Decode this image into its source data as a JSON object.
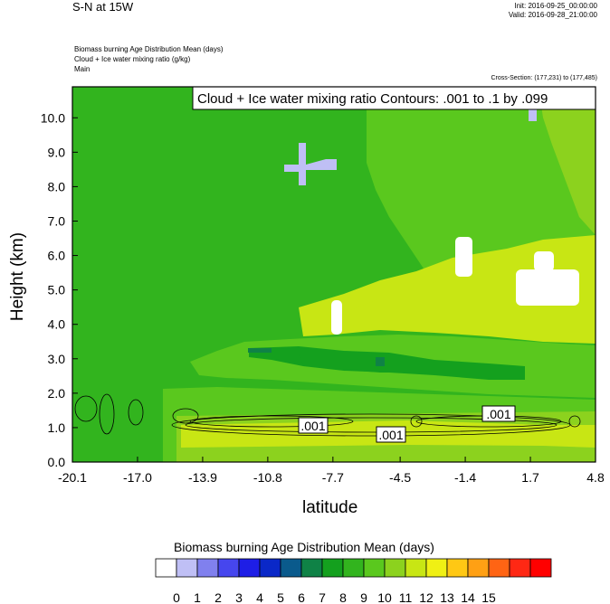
{
  "header": {
    "title": "S-N at 15W",
    "init": "Init: 2016-09-25_00:00:00",
    "valid": "Valid: 2016-09-28_21:00:00",
    "fields": [
      "Biomass burning Age Distribution Mean    (days)",
      "Cloud + Ice water mixing ratio   (g/kg)",
      "Main"
    ],
    "cross_section": "Cross-Section: (177,231) to (177,485)"
  },
  "chart_data": {
    "type": "heatmap",
    "title": "S-N at 15W",
    "xlabel": "latitude",
    "ylabel": "Height (km)",
    "xlim": [
      -20.1,
      4.8
    ],
    "ylim": [
      0.0,
      10.9
    ],
    "x_ticks": [
      "-20.1",
      "-17.0",
      "-13.9",
      "-10.8",
      "-7.7",
      "-4.5",
      "-1.4",
      "1.7",
      "4.8"
    ],
    "y_ticks": [
      "0.0",
      "1.0",
      "2.0",
      "3.0",
      "4.0",
      "5.0",
      "6.0",
      "7.0",
      "8.0",
      "9.0",
      "10.0"
    ],
    "contour_info": "Cloud + Ice water mixing ratio Contours: .001 to .1 by .099",
    "contour_labels": [
      ".001",
      ".001",
      ".001"
    ],
    "colorbar": {
      "title": "Biomass burning Age Distribution Mean  (days)",
      "labels": [
        "0",
        "1",
        "2",
        "3",
        "4",
        "5",
        "6",
        "7",
        "8",
        "9",
        "10",
        "11",
        "12",
        "13",
        "14",
        "15"
      ],
      "colors": [
        "#ffffff",
        "#bfbff5",
        "#8080ee",
        "#4646ee",
        "#1e1ee6",
        "#0a28c8",
        "#0a5a8c",
        "#0f8246",
        "#14a01e",
        "#32b41e",
        "#5ac81e",
        "#8cd21e",
        "#c8e614",
        "#f0f014",
        "#ffc814",
        "#ffa014",
        "#ff6414",
        "#ff2814",
        "#ff0000"
      ]
    },
    "colors": {
      "c7": "#0f8246",
      "c8": "#14a01e",
      "c9": "#32b41e",
      "c10": "#5ac81e",
      "c11": "#8cd21e",
      "c12": "#c8e614",
      "c1": "#bfbff5",
      "c0": "#ffffff"
    }
  }
}
